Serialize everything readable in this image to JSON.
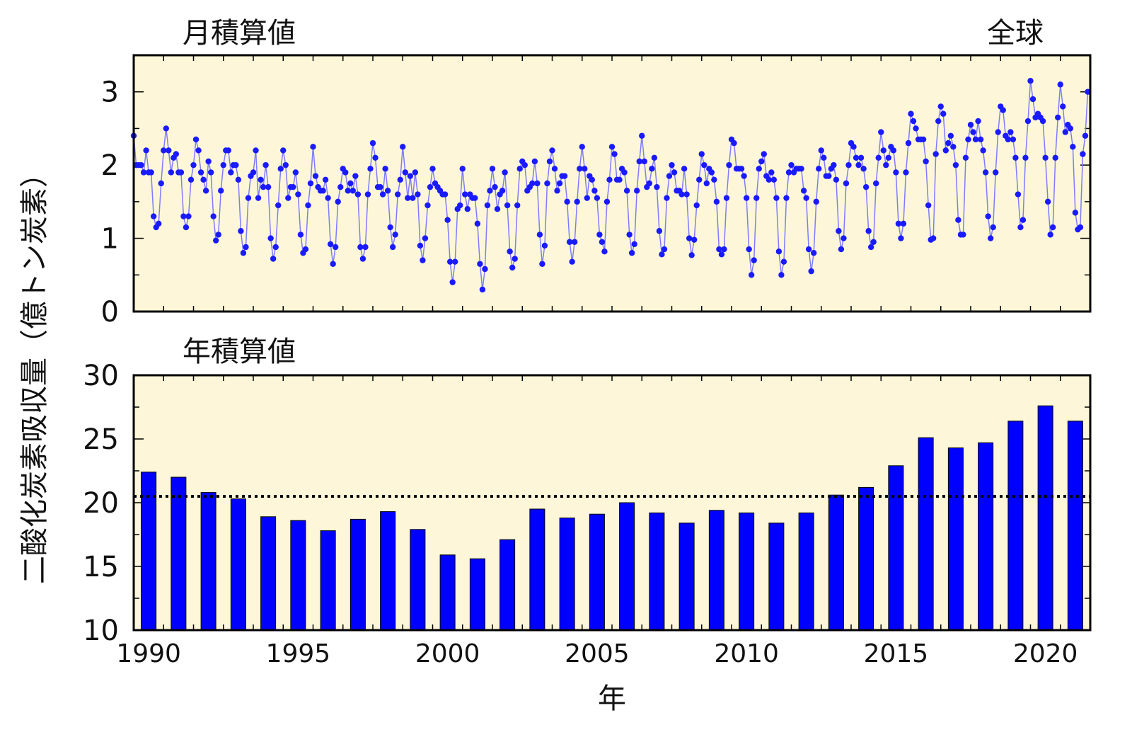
{
  "chart_data": [
    {
      "type": "line",
      "title": "月積算値",
      "region_label": "全球",
      "ylabel": "二酸化炭素吸収量（億トン炭素）",
      "ylim": [
        0,
        3.5
      ],
      "yticks": [
        "0",
        "1",
        "2",
        "3"
      ],
      "xlim": [
        1990,
        2022
      ],
      "color": "#1a1aff",
      "start_year": 1990,
      "monthly_values": [
        2.4,
        2.0,
        2.0,
        2.0,
        1.9,
        2.2,
        1.9,
        1.9,
        1.3,
        1.15,
        1.2,
        1.75,
        2.2,
        2.5,
        2.2,
        1.9,
        2.1,
        2.15,
        1.9,
        1.9,
        1.3,
        1.15,
        1.3,
        1.8,
        2.0,
        2.35,
        2.2,
        1.9,
        1.8,
        1.65,
        2.05,
        1.9,
        1.3,
        0.97,
        1.05,
        1.65,
        2.0,
        2.2,
        2.2,
        1.9,
        2.0,
        2.0,
        1.8,
        1.1,
        0.8,
        0.88,
        1.55,
        1.85,
        1.9,
        2.2,
        1.55,
        1.8,
        1.7,
        2.0,
        1.7,
        1.0,
        0.72,
        0.88,
        1.45,
        1.95,
        2.2,
        2.0,
        1.55,
        1.7,
        1.7,
        1.9,
        1.6,
        1.05,
        0.8,
        0.85,
        1.45,
        1.75,
        2.25,
        1.85,
        1.7,
        1.65,
        1.65,
        1.8,
        1.55,
        0.92,
        0.65,
        0.88,
        1.5,
        1.7,
        1.95,
        1.9,
        1.65,
        1.75,
        1.65,
        1.85,
        1.6,
        0.88,
        0.72,
        0.88,
        1.6,
        1.95,
        2.3,
        2.1,
        1.7,
        1.7,
        1.6,
        1.95,
        1.65,
        1.15,
        0.88,
        1.05,
        1.6,
        1.8,
        2.25,
        1.9,
        1.55,
        1.85,
        1.55,
        1.9,
        1.6,
        0.9,
        0.7,
        1.0,
        1.45,
        1.7,
        1.95,
        1.75,
        1.7,
        1.65,
        1.6,
        1.6,
        1.25,
        0.68,
        0.4,
        0.68,
        1.4,
        1.45,
        1.95,
        1.6,
        1.4,
        1.6,
        1.55,
        1.55,
        1.2,
        0.65,
        0.3,
        0.58,
        1.45,
        1.65,
        1.95,
        1.7,
        1.4,
        1.6,
        1.65,
        1.9,
        1.45,
        0.82,
        0.6,
        0.72,
        1.45,
        1.95,
        2.05,
        2.0,
        1.65,
        1.7,
        1.75,
        2.05,
        1.75,
        1.05,
        0.65,
        0.9,
        1.75,
        2.05,
        2.2,
        1.95,
        1.65,
        1.75,
        1.85,
        1.85,
        1.5,
        0.95,
        0.68,
        0.95,
        1.5,
        1.95,
        2.25,
        1.95,
        1.55,
        1.85,
        1.8,
        1.65,
        1.55,
        1.05,
        0.95,
        0.82,
        1.5,
        1.8,
        2.25,
        2.15,
        1.8,
        1.8,
        1.95,
        1.9,
        1.65,
        1.05,
        0.8,
        0.92,
        1.65,
        2.05,
        2.4,
        2.05,
        1.7,
        1.75,
        1.95,
        2.1,
        1.7,
        1.1,
        0.78,
        0.85,
        1.55,
        1.85,
        2.0,
        1.9,
        1.65,
        1.65,
        1.6,
        1.95,
        1.6,
        1.0,
        0.77,
        0.98,
        1.45,
        1.8,
        2.15,
        2.0,
        1.75,
        1.95,
        1.9,
        1.8,
        1.5,
        0.85,
        0.78,
        0.85,
        1.55,
        2.0,
        2.35,
        2.3,
        1.95,
        1.95,
        1.95,
        1.85,
        1.55,
        0.85,
        0.5,
        0.7,
        1.55,
        1.95,
        2.05,
        2.15,
        1.85,
        1.8,
        1.9,
        1.8,
        1.55,
        0.82,
        0.5,
        0.68,
        1.55,
        1.9,
        2.0,
        1.9,
        1.95,
        1.95,
        1.95,
        1.65,
        1.55,
        0.85,
        0.55,
        0.8,
        1.5,
        1.95,
        2.2,
        2.1,
        1.85,
        1.85,
        1.95,
        2.0,
        1.8,
        1.1,
        0.85,
        1.0,
        1.75,
        2.0,
        2.3,
        2.25,
        2.1,
        2.0,
        2.1,
        1.95,
        1.7,
        1.1,
        0.88,
        0.95,
        1.75,
        2.1,
        2.45,
        2.2,
        2.0,
        2.1,
        2.25,
        2.2,
        1.9,
        1.2,
        1.0,
        1.2,
        1.9,
        2.3,
        2.7,
        2.6,
        2.5,
        2.35,
        2.35,
        2.35,
        2.05,
        1.45,
        0.98,
        1.0,
        2.15,
        2.6,
        2.8,
        2.7,
        2.2,
        2.3,
        2.4,
        2.25,
        2.0,
        1.25,
        1.05,
        1.05,
        2.1,
        2.35,
        2.55,
        2.45,
        2.35,
        2.6,
        2.35,
        2.2,
        1.9,
        1.3,
        1.0,
        1.15,
        1.9,
        2.45,
        2.8,
        2.75,
        2.4,
        2.35,
        2.45,
        2.35,
        2.1,
        1.6,
        1.15,
        1.25,
        2.1,
        2.6,
        3.15,
        2.9,
        2.65,
        2.7,
        2.65,
        2.6,
        2.1,
        1.5,
        1.05,
        1.15,
        2.1,
        2.65,
        3.1,
        2.8,
        2.45,
        2.55,
        2.5,
        2.25,
        1.35,
        1.12,
        1.15,
        2.15,
        2.4,
        3.0
      ]
    },
    {
      "type": "bar",
      "title": "年積算値",
      "xlabel": "年",
      "ylim": [
        10,
        30
      ],
      "yticks": [
        "10",
        "15",
        "20",
        "25",
        "30"
      ],
      "xticks": [
        "1990",
        "1995",
        "2000",
        "2005",
        "2010",
        "2015",
        "2020"
      ],
      "color": "#0000ff",
      "reference_line": 20.5,
      "categories": [
        1990,
        1991,
        1992,
        1993,
        1994,
        1995,
        1996,
        1997,
        1998,
        1999,
        2000,
        2001,
        2002,
        2003,
        2004,
        2005,
        2006,
        2007,
        2008,
        2009,
        2010,
        2011,
        2012,
        2013,
        2014,
        2015,
        2016,
        2017,
        2018,
        2019,
        2020,
        2021
      ],
      "values": [
        22.4,
        22.0,
        20.8,
        20.3,
        18.9,
        18.6,
        17.8,
        18.7,
        19.3,
        17.9,
        15.9,
        15.6,
        17.1,
        19.5,
        18.8,
        19.1,
        20.0,
        19.2,
        18.4,
        19.4,
        19.2,
        18.4,
        19.2,
        20.6,
        21.2,
        22.9,
        25.1,
        24.3,
        24.7,
        26.4,
        27.6,
        26.4
      ]
    }
  ]
}
